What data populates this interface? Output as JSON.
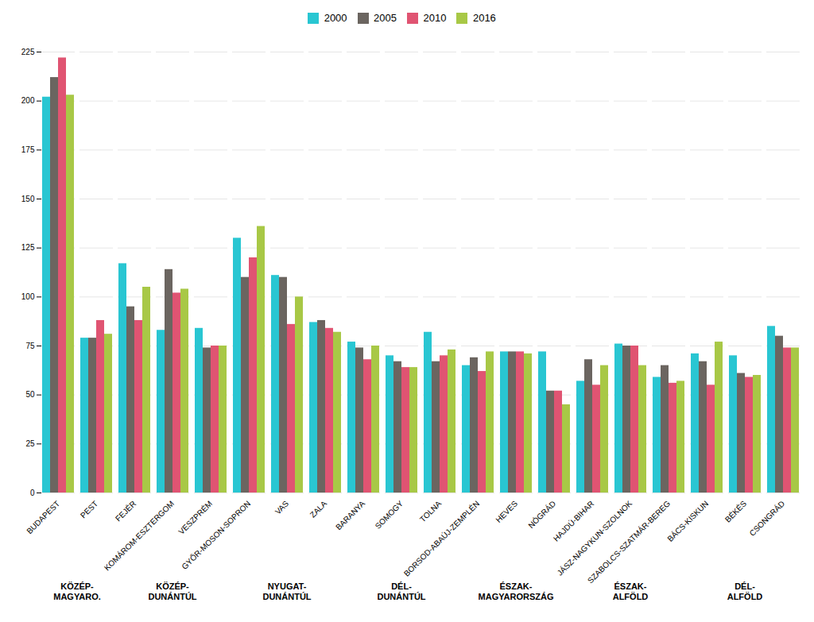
{
  "chart_data": {
    "type": "bar",
    "categories": [
      "BUDAPEST",
      "PEST",
      "FEJÉR",
      "KOMÁROM-ESZTERGOM",
      "VESZPRÉM",
      "GYŐR-MOSON-SOPRON",
      "VAS",
      "ZALA",
      "BARANYA",
      "SOMOGY",
      "TOLNA",
      "BORSOD-ABAÚJ-ZEMPLÉN",
      "HEVES",
      "NÓGRÁD",
      "HAJDÚ-BIHAR",
      "JÁSZ-NAGYKUN-SZOLNOK",
      "SZABOLCS-SZATMÁR-BEREG",
      "BÁCS-KISKUN",
      "BÉKÉS",
      "CSONGRÁD"
    ],
    "series": [
      {
        "name": "2000",
        "color": "#29C6D2",
        "values": [
          202,
          79,
          117,
          83,
          84,
          130,
          111,
          87,
          77,
          70,
          82,
          65,
          72,
          72,
          57,
          76,
          59,
          71,
          70,
          85
        ]
      },
      {
        "name": "2005",
        "color": "#6B6560",
        "values": [
          212,
          79,
          95,
          114,
          74,
          110,
          110,
          88,
          74,
          67,
          67,
          69,
          72,
          52,
          68,
          75,
          65,
          67,
          61,
          80
        ]
      },
      {
        "name": "2010",
        "color": "#E05472",
        "values": [
          222,
          88,
          88,
          102,
          75,
          120,
          86,
          84,
          68,
          64,
          70,
          62,
          72,
          52,
          55,
          75,
          56,
          55,
          59,
          74
        ]
      },
      {
        "name": "2016",
        "color": "#A8C846",
        "values": [
          203,
          81,
          105,
          104,
          75,
          136,
          100,
          82,
          75,
          64,
          73,
          72,
          71,
          45,
          65,
          65,
          57,
          77,
          60,
          74
        ]
      }
    ],
    "regions": [
      {
        "name": "KÖZÉP-\nMAGYARO.",
        "categories": [
          "BUDAPEST",
          "PEST"
        ]
      },
      {
        "name": "KÖZÉP-\nDUNÁNTÚL",
        "categories": [
          "FEJÉR",
          "KOMÁROM-ESZTERGOM",
          "VESZPRÉM"
        ]
      },
      {
        "name": "NYUGAT-\nDUNÁNTÚL",
        "categories": [
          "GYŐR-MOSON-SOPRON",
          "VAS",
          "ZALA"
        ]
      },
      {
        "name": "DÉL-\nDUNÁNTÚL",
        "categories": [
          "BARANYA",
          "SOMOGY",
          "TOLNA"
        ]
      },
      {
        "name": "ÉSZAK-\nMAGYARORSZÁG",
        "categories": [
          "BORSOD-ABAÚJ-ZEMPLÉN",
          "HEVES",
          "NÓGRÁD"
        ]
      },
      {
        "name": "ÉSZAK-\nALFÖLD",
        "categories": [
          "HAJDÚ-BIHAR",
          "JÁSZ-NAGYKUN-SZOLNOK",
          "SZABOLCS-SZATMÁR-BEREG"
        ]
      },
      {
        "name": "DÉL-\nALFÖLD",
        "categories": [
          "BÁCS-KISKUN",
          "BÉKÉS",
          "CSONGRÁD"
        ]
      }
    ],
    "ylim": [
      0,
      225
    ],
    "yticks": [
      0,
      25,
      50,
      75,
      100,
      125,
      150,
      175,
      200,
      225
    ],
    "grid": true,
    "legend": "top"
  }
}
